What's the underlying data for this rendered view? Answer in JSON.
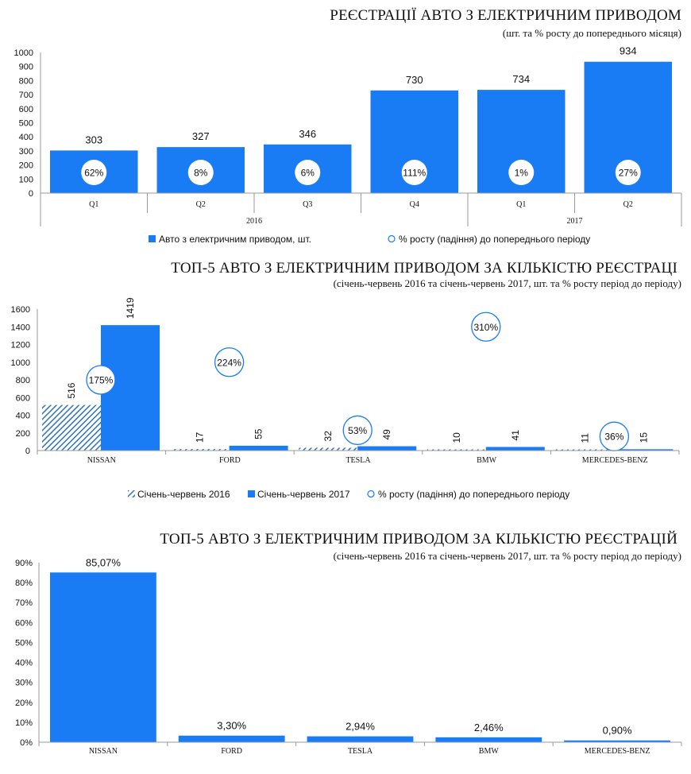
{
  "colors": {
    "bar": "#1a7cf5",
    "bar2016": "#2f73b8",
    "circle_stroke": "#1a7cf5",
    "axis": "#9a9a9a"
  },
  "chart_data": [
    {
      "type": "bar",
      "title": "РЕЄСТРАЦІЇ АВТО З ЕЛЕКТРИЧНИМ ПРИВОДОМ",
      "subtitle": "(шт. та % росту до попереднього місяця)",
      "categories": [
        "Q1",
        "Q2",
        "Q3",
        "Q4",
        "Q1",
        "Q2"
      ],
      "groups": [
        {
          "label": "2016",
          "count": 4
        },
        {
          "label": "2017",
          "count": 2
        }
      ],
      "series": [
        {
          "name": "Авто з електричним приводом,  шт.",
          "values": [
            303,
            327,
            346,
            730,
            734,
            934
          ]
        },
        {
          "name": "% росту (падіння) до попереднього  періоду",
          "values": [
            "62%",
            "8%",
            "6%",
            "111%",
            "1%",
            "27%"
          ]
        }
      ],
      "y_ticks": [
        "0",
        "100",
        "200",
        "300",
        "400",
        "500",
        "600",
        "700",
        "800",
        "900",
        "1000"
      ],
      "ylim": [
        0,
        1000
      ]
    },
    {
      "type": "bar",
      "title": "ТОП-5 АВТО З ЕЛЕКТРИЧНИМ ПРИВОДОМ ЗА КІЛЬКІСТЮ РЕЄСТРАЦІ",
      "subtitle": "(січень-червень 2016 та січень-червень 2017, шт. та % росту період до періоду)",
      "categories": [
        "NISSAN",
        "FORD",
        "TESLA",
        "BMW",
        "MERCEDES-BENZ"
      ],
      "series": [
        {
          "name": "Січень-червень 2016",
          "values": [
            516,
            17,
            32,
            10,
            11
          ]
        },
        {
          "name": "Січень-червень 2017",
          "values": [
            1419,
            55,
            49,
            41,
            15
          ]
        },
        {
          "name": "% росту (падіння) до попереднього періоду",
          "values": [
            "175%",
            "224%",
            "53%",
            "310%",
            "36%"
          ],
          "levels": [
            800,
            1000,
            230,
            1400,
            160
          ]
        }
      ],
      "y_ticks": [
        "0",
        "200",
        "400",
        "600",
        "800",
        "1000",
        "1200",
        "1400",
        "1600"
      ],
      "ylim": [
        0,
        1600
      ]
    },
    {
      "type": "bar",
      "title": "ТОП-5 АВТО З ЕЛЕКТРИЧНИМ ПРИВОДОМ ЗА КІЛЬКІСТЮ РЕЄСТРАЦІЙ",
      "subtitle": "(січень-червень 2016 та січень-червень 2017, шт. та % росту період до періоду)",
      "categories": [
        "NISSAN",
        "FORD",
        "TESLA",
        "BMW",
        "MERCEDES-BENZ"
      ],
      "values": [
        85.07,
        3.3,
        2.94,
        2.46,
        0.9
      ],
      "labels": [
        "85,07%",
        "3,30%",
        "2,94%",
        "2,46%",
        "0,90%"
      ],
      "y_ticks": [
        "0%",
        "10%",
        "20%",
        "30%",
        "40%",
        "50%",
        "60%",
        "70%",
        "80%",
        "90%"
      ],
      "ylim": [
        0,
        90
      ]
    }
  ]
}
